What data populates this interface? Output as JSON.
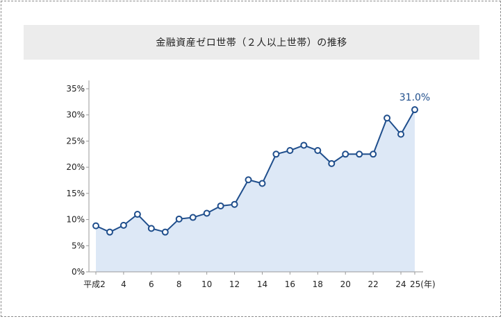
{
  "title": "金融資産ゼロ世帯（２人以上世帯）の推移",
  "colors": {
    "line": "#1f4e8c",
    "area": "#dde8f6",
    "axis": "#999999",
    "background_band": "#ececec"
  },
  "chart_data": {
    "type": "area",
    "title": "金融資産ゼロ世帯（２人以上世帯）の推移",
    "x": [
      2,
      3,
      4,
      5,
      6,
      7,
      8,
      9,
      10,
      11,
      12,
      13,
      14,
      15,
      16,
      17,
      18,
      19,
      20,
      21,
      22,
      23,
      24,
      25
    ],
    "series": [
      {
        "values": [
          8.8,
          7.6,
          8.9,
          11.0,
          8.3,
          7.6,
          10.1,
          10.4,
          11.2,
          12.6,
          12.9,
          17.6,
          16.9,
          22.5,
          23.2,
          24.2,
          23.2,
          20.7,
          22.5,
          22.5,
          22.5,
          29.4,
          26.3,
          31.0
        ]
      }
    ],
    "ylim": [
      0,
      35
    ],
    "y_ticks": [
      "0%",
      "5%",
      "10%",
      "15%",
      "20%",
      "25%",
      "30%",
      "35%"
    ],
    "y_tick_values": [
      0,
      5,
      10,
      15,
      20,
      25,
      30,
      35
    ],
    "x_tick_values": [
      2,
      4,
      6,
      8,
      10,
      12,
      14,
      16,
      18,
      20,
      22,
      24,
      25
    ],
    "x_ticks": [
      "平成2",
      "4",
      "6",
      "8",
      "10",
      "12",
      "14",
      "16",
      "18",
      "20",
      "22",
      "24",
      "25(年)"
    ],
    "annotation": {
      "x": 25,
      "text": "31.0%"
    },
    "grid": false,
    "legend": "none"
  }
}
